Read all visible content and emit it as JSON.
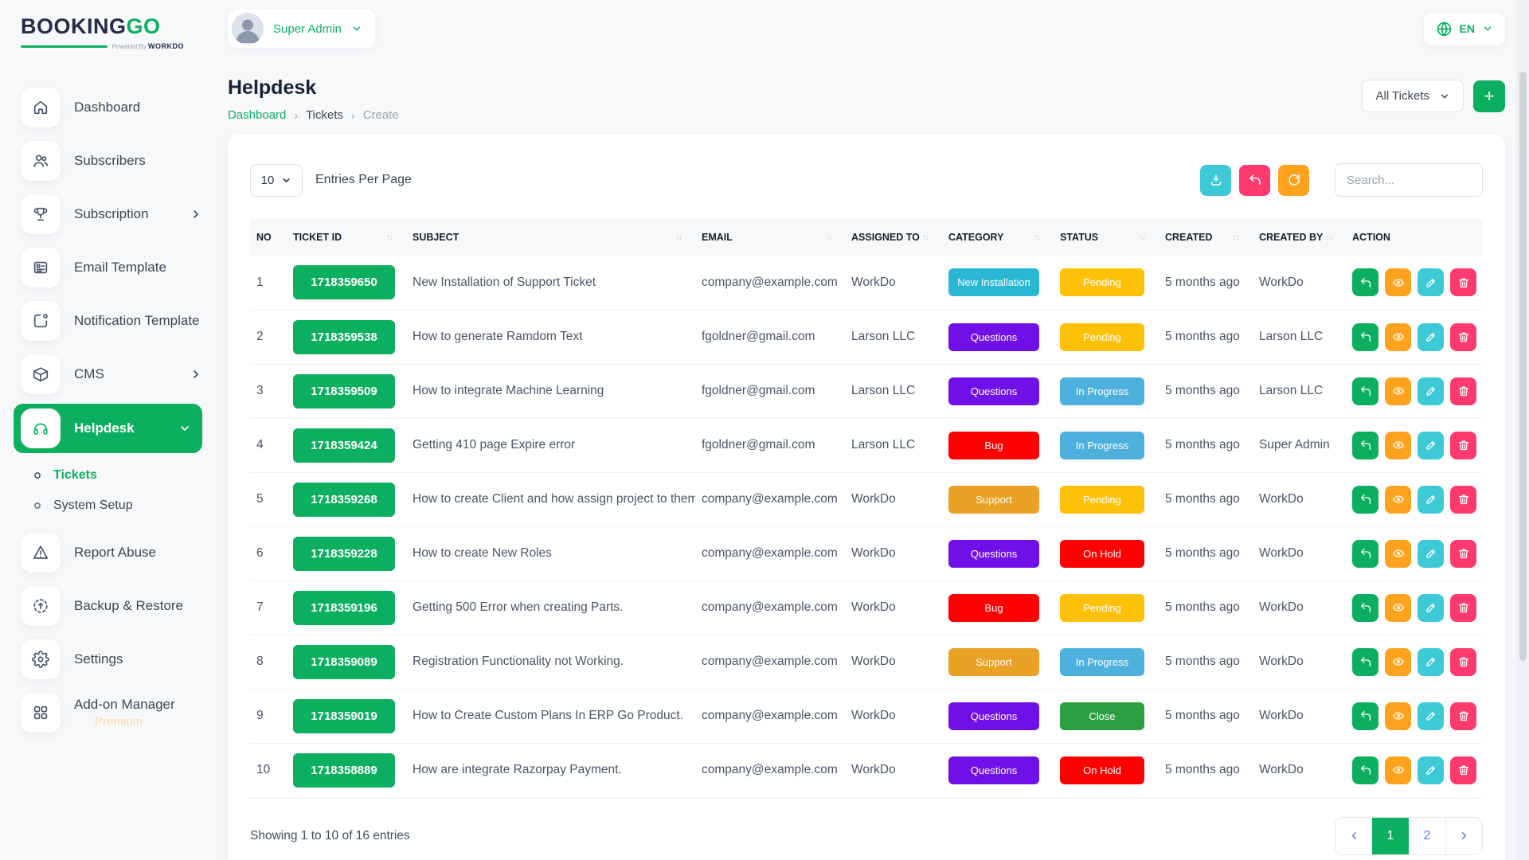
{
  "brand": {
    "name_primary": "BOOKING",
    "name_accent": "GO",
    "powered_by": "Powered By",
    "powered_brand": "WORKDO"
  },
  "header": {
    "profile_label": "Super Admin",
    "language": "EN"
  },
  "sidebar": {
    "items": [
      {
        "label": "Dashboard",
        "icon": "home"
      },
      {
        "label": "Subscribers",
        "icon": "users"
      },
      {
        "label": "Subscription",
        "icon": "trophy",
        "chevron": "right"
      },
      {
        "label": "Email Template",
        "icon": "template"
      },
      {
        "label": "Notification Template",
        "icon": "notification"
      },
      {
        "label": "CMS",
        "icon": "package",
        "chevron": "right"
      },
      {
        "label": "Helpdesk",
        "icon": "headset",
        "chevron": "down",
        "active": true,
        "children": [
          {
            "label": "Tickets",
            "active": true
          },
          {
            "label": "System Setup"
          }
        ]
      },
      {
        "label": "Report Abuse",
        "icon": "alert"
      },
      {
        "label": "Backup & Restore",
        "icon": "restore"
      },
      {
        "label": "Settings",
        "icon": "gear"
      },
      {
        "label": "Add-on Manager",
        "icon": "grid",
        "badge": "Premium"
      }
    ]
  },
  "page": {
    "title": "Helpdesk",
    "breadcrumb": [
      "Dashboard",
      "Tickets",
      "Create"
    ],
    "filter_label": "All Tickets",
    "add_label": "+"
  },
  "controls": {
    "entries_value": "10",
    "entries_label": "Entries Per Page",
    "search_placeholder": "Search..."
  },
  "table": {
    "columns": [
      {
        "label": "NO",
        "sortable": false
      },
      {
        "label": "TICKET ID",
        "sortable": true
      },
      {
        "label": "SUBJECT",
        "sortable": true
      },
      {
        "label": "EMAIL",
        "sortable": true
      },
      {
        "label": "ASSIGNED TO",
        "sortable": true
      },
      {
        "label": "CATEGORY",
        "sortable": true
      },
      {
        "label": "STATUS",
        "sortable": true
      },
      {
        "label": "CREATED",
        "sortable": true
      },
      {
        "label": "CREATED BY",
        "sortable": true
      },
      {
        "label": "ACTION",
        "sortable": false
      }
    ],
    "badge_colors": {
      "New Installation": "#29B7D3",
      "Questions": "#6F10E8",
      "Bug": "#FF0000",
      "Support": "#E9A126",
      "Pending": "#FFC107",
      "In Progress": "#4EB1DD",
      "On Hold": "#FF0000",
      "Close": "#2D9E41"
    },
    "action_buttons": [
      {
        "name": "reply",
        "color": "#0CAF60"
      },
      {
        "name": "view",
        "color": "#FFA21D"
      },
      {
        "name": "edit",
        "color": "#3EC9D6"
      },
      {
        "name": "delete",
        "color": "#FF3A6E"
      }
    ],
    "rows": [
      {
        "no": "1",
        "ticket_id": "1718359650",
        "subject": "New Installation of Support Ticket",
        "email": "company@example.com",
        "assigned_to": "WorkDo",
        "category": "New Installation",
        "status": "Pending",
        "created": "5 months ago",
        "created_by": "WorkDo"
      },
      {
        "no": "2",
        "ticket_id": "1718359538",
        "subject": "How to generate Ramdom Text",
        "email": "fgoldner@gmail.com",
        "assigned_to": "Larson LLC",
        "category": "Questions",
        "status": "Pending",
        "created": "5 months ago",
        "created_by": "Larson LLC"
      },
      {
        "no": "3",
        "ticket_id": "1718359509",
        "subject": "How to integrate Machine Learning",
        "email": "fgoldner@gmail.com",
        "assigned_to": "Larson LLC",
        "category": "Questions",
        "status": "In Progress",
        "created": "5 months ago",
        "created_by": "Larson LLC"
      },
      {
        "no": "4",
        "ticket_id": "1718359424",
        "subject": "Getting 410 page Expire error",
        "email": "fgoldner@gmail.com",
        "assigned_to": "Larson LLC",
        "category": "Bug",
        "status": "In Progress",
        "created": "5 months ago",
        "created_by": "Super Admin"
      },
      {
        "no": "5",
        "ticket_id": "1718359268",
        "subject": "How to create Client and how assign project to them",
        "email": "company@example.com",
        "assigned_to": "WorkDo",
        "category": "Support",
        "status": "Pending",
        "created": "5 months ago",
        "created_by": "WorkDo"
      },
      {
        "no": "6",
        "ticket_id": "1718359228",
        "subject": "How to create New Roles",
        "email": "company@example.com",
        "assigned_to": "WorkDo",
        "category": "Questions",
        "status": "On Hold",
        "created": "5 months ago",
        "created_by": "WorkDo"
      },
      {
        "no": "7",
        "ticket_id": "1718359196",
        "subject": "Getting 500 Error when creating Parts.",
        "email": "company@example.com",
        "assigned_to": "WorkDo",
        "category": "Bug",
        "status": "Pending",
        "created": "5 months ago",
        "created_by": "WorkDo"
      },
      {
        "no": "8",
        "ticket_id": "1718359089",
        "subject": "Registration Functionality not Working.",
        "email": "company@example.com",
        "assigned_to": "WorkDo",
        "category": "Support",
        "status": "In Progress",
        "created": "5 months ago",
        "created_by": "WorkDo"
      },
      {
        "no": "9",
        "ticket_id": "1718359019",
        "subject": "How to Create Custom Plans In ERP Go Product.",
        "email": "company@example.com",
        "assigned_to": "WorkDo",
        "category": "Questions",
        "status": "Close",
        "created": "5 months ago",
        "created_by": "WorkDo"
      },
      {
        "no": "10",
        "ticket_id": "1718358889",
        "subject": "How are integrate Razorpay Payment.",
        "email": "company@example.com",
        "assigned_to": "WorkDo",
        "category": "Questions",
        "status": "On Hold",
        "created": "5 months ago",
        "created_by": "WorkDo"
      }
    ]
  },
  "footer": {
    "showing_text": "Showing 1 to 10 of 16 entries",
    "pages": [
      {
        "label": "1",
        "active": true
      },
      {
        "label": "2",
        "active": false
      }
    ]
  },
  "colors": {
    "primary_green": "#0CAF60",
    "teal": "#3EC9D6",
    "pink": "#FF3A6E",
    "orange": "#FFA21D",
    "pager_accent": "#6571FF"
  }
}
